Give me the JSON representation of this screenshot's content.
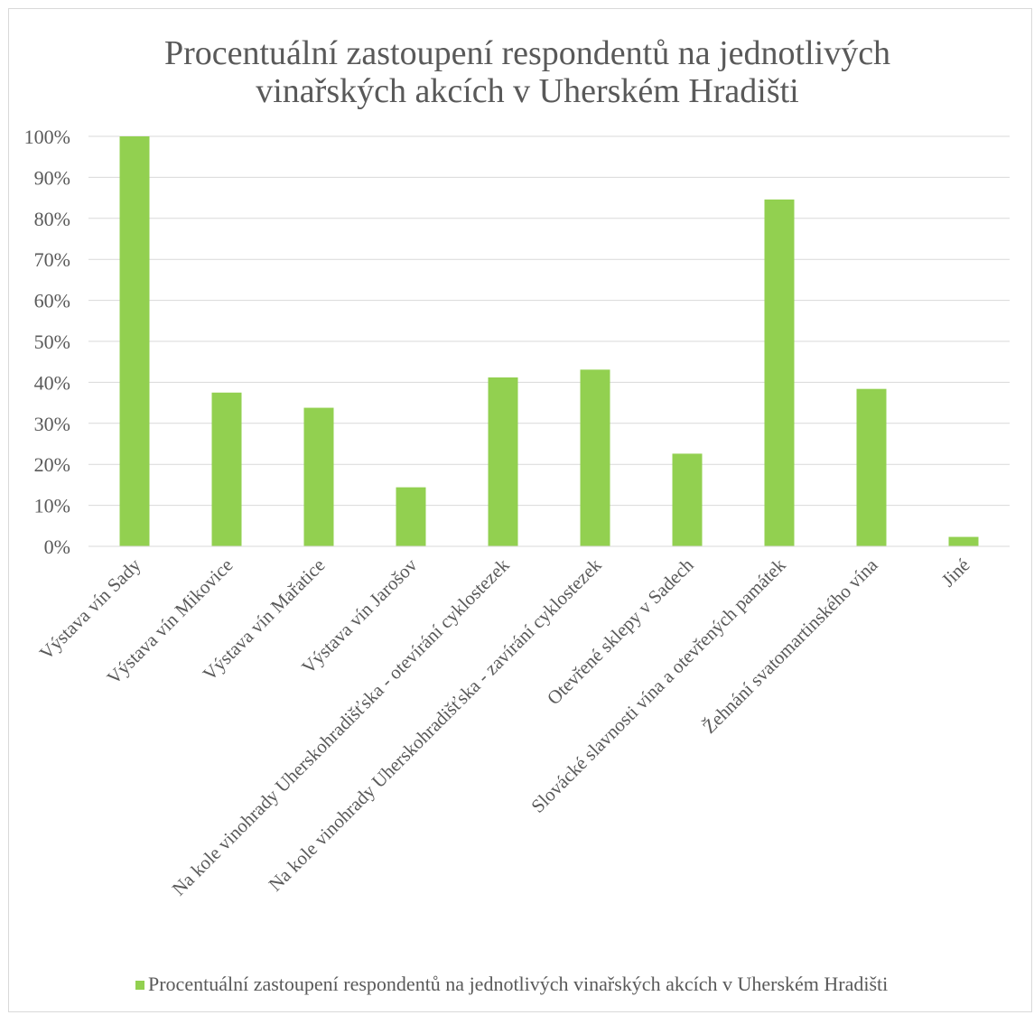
{
  "chart_data": {
    "type": "bar",
    "title_lines": [
      "Procentuální zastoupení respondentů na jednotlivých",
      "vinařských akcích v Uherském Hradišti"
    ],
    "categories": [
      "Výstava vín Sady",
      "Výstava vín Mikovice",
      "Výstava vín Mařatice",
      "Výstava vín Jarošov",
      "Na kole vinohrady Uherskohradišťska - otevírání cyklostezek",
      "Na kole vinohrady Uherskohradišťska - zavírání cyklostezek",
      "Otevřené sklepy v Sadech",
      "Slovácké slavnosti vína a otevřených památek",
      "Žehnání svatomartinského vína",
      "Jiné"
    ],
    "series": [
      {
        "name": "Procentuální zastoupení respondentů na jednotlivých vinařských akcích v Uherském Hradišti",
        "values": [
          100,
          37.5,
          33.8,
          14.4,
          41.2,
          43.1,
          22.6,
          84.6,
          38.4,
          2.3
        ],
        "color": "#92d050"
      }
    ],
    "y_ticks": [
      "0%",
      "10%",
      "20%",
      "30%",
      "40%",
      "50%",
      "60%",
      "70%",
      "80%",
      "90%",
      "100%"
    ],
    "ylim": [
      0,
      100
    ],
    "y_unit": "%",
    "grid": true,
    "legend_position": "bottom"
  }
}
